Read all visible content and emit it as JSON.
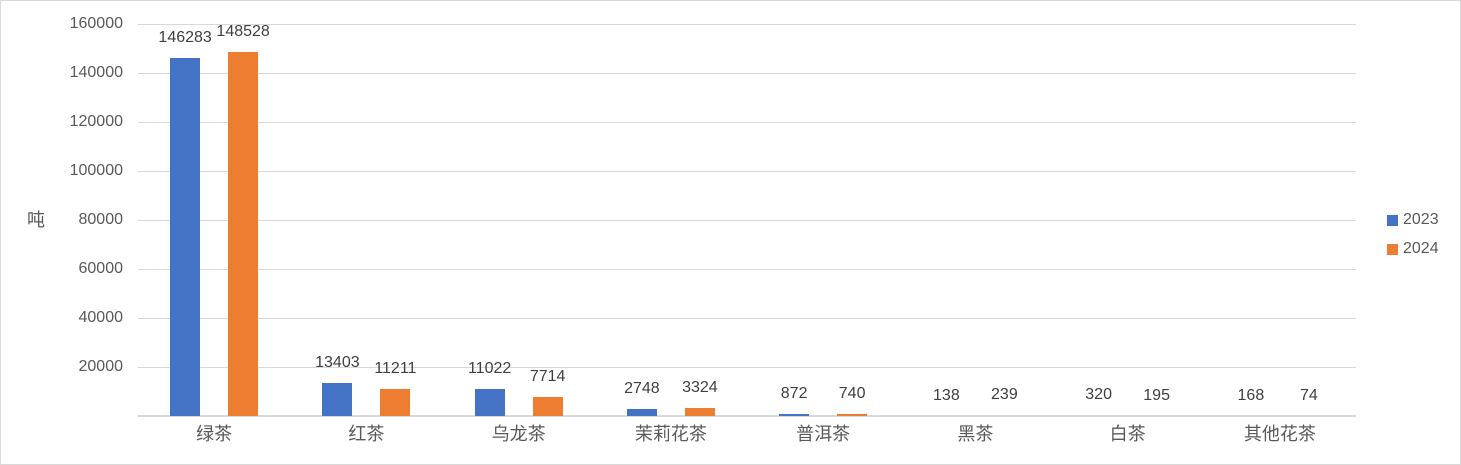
{
  "chart_data": {
    "type": "bar",
    "title": "",
    "ylabel": "吨",
    "categories": [
      "绿茶",
      "红茶",
      "乌龙茶",
      "茉莉花茶",
      "普洱茶",
      "黑茶",
      "白茶",
      "其他花茶"
    ],
    "series": [
      {
        "name": "2023",
        "color": "#4472C4",
        "values": [
          146283,
          13403,
          11022,
          2748,
          872,
          138,
          320,
          168
        ]
      },
      {
        "name": "2024",
        "color": "#ED7D31",
        "values": [
          148528,
          11211,
          7714,
          3324,
          740,
          239,
          195,
          74
        ]
      }
    ],
    "ylim": [
      0,
      160000
    ],
    "yticks": [
      160000,
      140000,
      120000,
      100000,
      80000,
      60000,
      40000,
      20000
    ],
    "grid": true,
    "legend_position": "right",
    "data_labels": "outside-end"
  },
  "colors": {
    "bar_2023": "#4472C4",
    "bar_2024": "#ED7D31",
    "gridline": "#D9D9D9",
    "axis_line": "#D9D9D9",
    "tick_text": "#595959",
    "category_text": "#595959",
    "data_label_text": "#404040",
    "border": "#D9D9D9",
    "background": "#FFFFFF"
  }
}
